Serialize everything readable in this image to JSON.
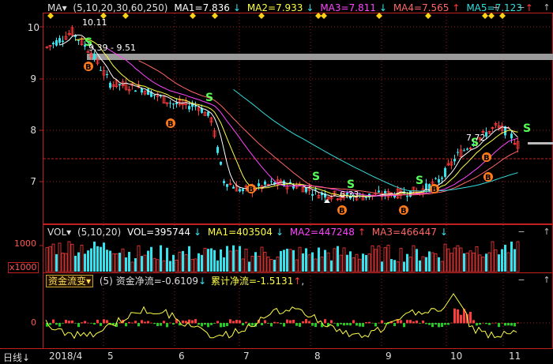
{
  "colors": {
    "up": "#ff3b3b",
    "down": "#35e3ee",
    "ma1": "#ffffff",
    "ma2": "#ffff44",
    "ma3": "#ff44ff",
    "ma4": "#ff6666",
    "ma5": "#33dddd",
    "grid": "#9a1a1a",
    "axis": "#c12020"
  },
  "main": {
    "indicator_menu": "MA▾",
    "params": "(5,10,20,30,60,250)",
    "ma1": "MA1=7.836",
    "ma2": "MA2=7.933",
    "ma3": "MA3=7.811",
    "ma4": "MA4=7.565",
    "ma5": "MA5=7.123",
    "ma1_arrow": "↓",
    "ma2_arrow": "↓",
    "ma3_arrow": "↓",
    "ma4_arrow": "↑",
    "ma5_arrow": "↑",
    "price_axis": [
      "10",
      "9",
      "8",
      "7"
    ],
    "annot_high": "10.11",
    "annot_gap": "9.39 - 9.51",
    "annot_low": "6.33",
    "annot_last": "7.72",
    "signal_sell": "S",
    "signal_buy": "B"
  },
  "volume": {
    "indicator_menu": "VOL▾",
    "params": "(5,10,20)",
    "vol": "VOL=395744",
    "ma1": "MA1=403504",
    "ma2": "MA2=447248",
    "ma3": "MA3=466447",
    "vol_arrow": "↓",
    "ma1_arrow": "↓",
    "ma2_arrow": "↑",
    "ma3_arrow": "↓",
    "axis_top": "1000",
    "unit": "x1000"
  },
  "flow": {
    "indicator_menu": "资金流变▾",
    "params": "(5)",
    "net": "资金净流=-0.6109",
    "cum": "累计净流=-1.5131",
    "net_arrow": "↓",
    "cum_arrow": "↑",
    "axis_zero": "0"
  },
  "controls": {
    "zoom_in": "+",
    "zoom_out": "−",
    "expand": "↑"
  },
  "timeline": {
    "period": "日线↓",
    "dates": [
      "2018/4",
      "5",
      "6",
      "7",
      "8",
      "9",
      "10",
      "11"
    ]
  }
}
